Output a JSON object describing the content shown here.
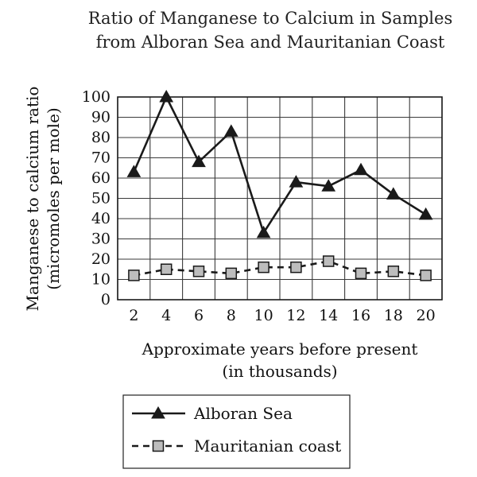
{
  "chart_data": {
    "type": "line",
    "title_lines": [
      "Ratio of Manganese to Calcium in Samples",
      "from Alboran Sea and Mauritanian Coast"
    ],
    "xlabel_lines": [
      "Approximate years before present",
      "(in thousands)"
    ],
    "ylabel_lines": [
      "Manganese to calcium ratio",
      "(micromoles per mole)"
    ],
    "x": [
      2,
      4,
      6,
      8,
      10,
      12,
      14,
      16,
      18,
      20
    ],
    "xlim": [
      1,
      21
    ],
    "ylim": [
      0,
      100
    ],
    "y_ticks": [
      0,
      10,
      20,
      30,
      40,
      50,
      60,
      70,
      80,
      90,
      100
    ],
    "grid": true,
    "legend_position": "bottom",
    "series": [
      {
        "name": "Alboran Sea",
        "marker": "triangle",
        "line_style": "solid",
        "color": "#1a1a1a",
        "values": [
          63,
          100,
          68,
          83,
          33,
          58,
          56,
          64,
          52,
          42
        ]
      },
      {
        "name": "Mauritanian coast",
        "marker": "square",
        "line_style": "dashed",
        "color": "#1a1a1a",
        "marker_fill": "#bdbdbd",
        "values": [
          12,
          15,
          14,
          13,
          16,
          16,
          19,
          13,
          14,
          12
        ]
      }
    ]
  }
}
